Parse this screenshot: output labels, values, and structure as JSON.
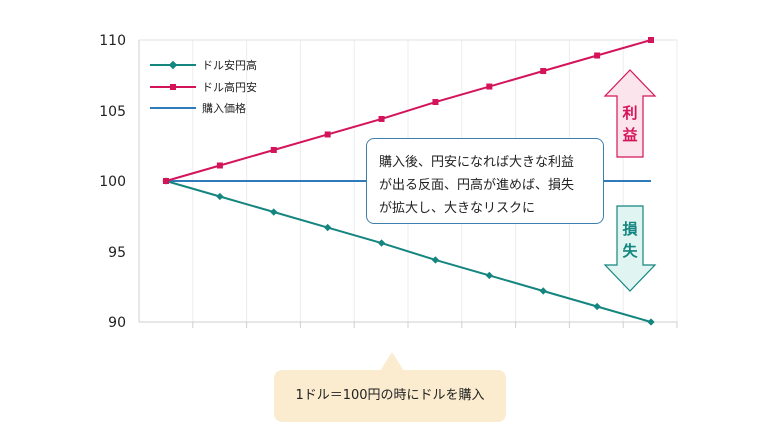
{
  "chart_data": {
    "type": "line",
    "x": [
      1,
      2,
      3,
      4,
      5,
      6,
      7,
      8,
      9,
      10
    ],
    "ylim": [
      90,
      110
    ],
    "yticks": [
      "110",
      "105",
      "100",
      "95",
      "90"
    ],
    "grid": "vertical",
    "legend_position": "top-left",
    "series": [
      {
        "name": "ドル安円高",
        "color": "#14857f",
        "marker": "diamond",
        "values": [
          100,
          98.9,
          97.8,
          96.7,
          95.6,
          94.4,
          93.3,
          92.2,
          91.1,
          90
        ]
      },
      {
        "name": "ドル高円安",
        "color": "#d4145a",
        "marker": "square",
        "values": [
          100,
          101.1,
          102.2,
          103.3,
          104.4,
          105.6,
          106.7,
          107.8,
          108.9,
          110
        ]
      },
      {
        "name": "購入価格",
        "color": "#2f7ab8",
        "marker": "none",
        "values": [
          100,
          100,
          100,
          100,
          100,
          100,
          100,
          100,
          100,
          100
        ]
      }
    ]
  },
  "annotations": {
    "callout_lines": [
      "購入後、円安になれば大きな利益",
      "が出る反面、円高が進めば、損失",
      "が拡大し、大きなリスクに"
    ],
    "profit_label": [
      "利",
      "益"
    ],
    "loss_label": [
      "損",
      "失"
    ],
    "bottom_note": "1ドル＝100円の時にドルを購入"
  },
  "colors": {
    "profit_fill": "#fce4ec",
    "profit_stroke": "#d4145a",
    "loss_fill": "#e0f5f2",
    "loss_stroke": "#14857f"
  }
}
